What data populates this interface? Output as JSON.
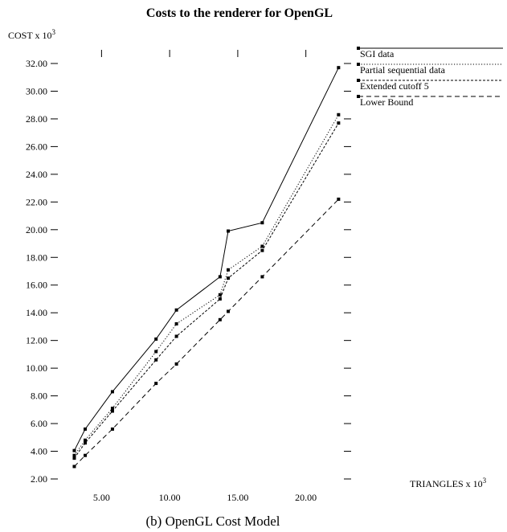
{
  "chart_data": {
    "type": "line",
    "title": "Costs to the renderer for OpenGL",
    "ylabel": "COST x 10",
    "ylabel_exponent": "3",
    "xlabel": "TRIANGLES x 10",
    "xlabel_exponent": "3",
    "caption": "(b) OpenGL Cost Model",
    "x_ticks": [
      "5.00",
      "10.00",
      "15.00",
      "20.00"
    ],
    "x_tick_values": [
      5,
      10,
      15,
      20
    ],
    "y_ticks": [
      "2.00",
      "4.00",
      "6.00",
      "8.00",
      "10.00",
      "12.00",
      "14.00",
      "16.00",
      "18.00",
      "20.00",
      "22.00",
      "24.00",
      "26.00",
      "28.00",
      "30.00",
      "32.00"
    ],
    "y_tick_values": [
      2,
      4,
      6,
      8,
      10,
      12,
      14,
      16,
      18,
      20,
      22,
      24,
      26,
      28,
      30,
      32
    ],
    "xlim": [
      2.5,
      23.5
    ],
    "ylim": [
      2,
      33
    ],
    "legend_position": "top-right",
    "grid": false,
    "series": [
      {
        "name": "SGI data",
        "dash": "solid",
        "x": [
          3.0,
          3.8,
          5.8,
          9.0,
          10.5,
          13.7,
          14.3,
          16.8,
          22.4
        ],
        "y": [
          4.05,
          5.6,
          8.3,
          12.1,
          14.2,
          16.6,
          19.9,
          20.5,
          31.7
        ]
      },
      {
        "name": "Partial sequential data",
        "dash": "dotted",
        "x": [
          3.0,
          3.8,
          5.8,
          9.0,
          10.5,
          13.7,
          14.3,
          16.8,
          22.4
        ],
        "y": [
          3.7,
          4.8,
          7.1,
          11.2,
          13.2,
          15.3,
          17.1,
          18.8,
          28.3
        ]
      },
      {
        "name": "Extended cutoff 5",
        "dash": "short-dash",
        "x": [
          3.0,
          3.8,
          5.8,
          9.0,
          10.5,
          13.7,
          14.3,
          16.8,
          22.4
        ],
        "y": [
          3.5,
          4.6,
          6.9,
          10.6,
          12.3,
          15.0,
          16.5,
          18.5,
          27.7
        ]
      },
      {
        "name": "Lower Bound",
        "dash": "long-dash",
        "x": [
          3.0,
          3.8,
          5.8,
          9.0,
          10.5,
          13.7,
          14.3,
          16.8,
          22.4
        ],
        "y": [
          2.9,
          3.7,
          5.6,
          8.9,
          10.3,
          13.5,
          14.1,
          16.6,
          22.2
        ]
      }
    ]
  }
}
